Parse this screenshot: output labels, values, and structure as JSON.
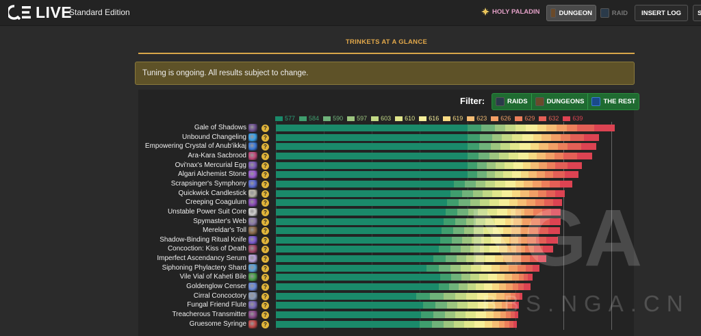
{
  "header": {
    "logo_text": "LIVE",
    "edition": "Standard Edition",
    "spec": "HOLY PALADIN",
    "mode_dungeon": "DUNGEON",
    "mode_raid": "RAID",
    "insert_log": "INSERT LOG",
    "extra_button": "S"
  },
  "section": {
    "title": "TRINKETS AT A GLANCE",
    "notice": "Tuning is ongoing. All results subject to change."
  },
  "filter": {
    "label": "Filter:",
    "options": [
      "RAIDS",
      "DUNGEONS",
      "THE REST"
    ]
  },
  "colors": {
    "accent": "#e2a84a",
    "filter_green": "#1f6b31",
    "help_yellow": "#e0b43a"
  },
  "chart_data": {
    "type": "bar",
    "orientation": "horizontal",
    "stacked": true,
    "title": "",
    "legend_placement": "top",
    "levels": [
      "577",
      "584",
      "590",
      "597",
      "603",
      "610",
      "616",
      "619",
      "623",
      "626",
      "629",
      "632",
      "639"
    ],
    "level_colors": [
      "#1a8a6a",
      "#3f9e6e",
      "#6fb27a",
      "#9cc57f",
      "#c1d885",
      "#e0e68c",
      "#f6ef9a",
      "#f7d983",
      "#f5bd74",
      "#f29f66",
      "#ec7f5b",
      "#e35f56",
      "#dc4352"
    ],
    "level_text_colors": [
      "#2aa07a",
      "#3f9e6e",
      "#6fb27a",
      "#9cc57f",
      "#c1d885",
      "#e0e68c",
      "#f6ef9a",
      "#f7d983",
      "#f5bd74",
      "#f29f66",
      "#ec7f5b",
      "#e35f56",
      "#dc4352"
    ],
    "categories": [
      "Gale of Shadows",
      "Unbound Changeling",
      "Empowering Crystal of Anub'ikkaj",
      "Ara-Kara Sacbrood",
      "Ovi'nax's Mercurial Egg",
      "Algari Alchemist Stone",
      "Scrapsinger's Symphony",
      "Quickwick Candlestick",
      "Creeping Coagulum",
      "Unstable Power Suit Core",
      "Spymaster's Web",
      "Mereldar's Toll",
      "Shadow-Binding Ritual Knife",
      "Concoction: Kiss of Death",
      "Imperfect Ascendancy Serum",
      "Siphoning Phylactery Shard",
      "Vile Vial of Kaheti Bile",
      "Goldenglow Censer",
      "Cirral Concoctory",
      "Fungal Friend Flute",
      "Treacherous Transmitter",
      "Gruesome Syringe"
    ],
    "totals_by_level": [
      [
        280,
        300,
        320,
        335,
        350,
        365,
        382,
        395,
        410,
        425,
        440,
        465,
        495
      ],
      [
        280,
        298,
        316,
        330,
        345,
        360,
        376,
        388,
        402,
        416,
        430,
        450,
        472
      ],
      [
        280,
        297,
        314,
        328,
        342,
        356,
        372,
        384,
        398,
        412,
        426,
        446,
        468
      ],
      [
        280,
        296,
        312,
        326,
        340,
        354,
        369,
        381,
        394,
        407,
        420,
        440,
        462
      ],
      [
        280,
        294,
        308,
        321,
        334,
        347,
        361,
        372,
        384,
        396,
        408,
        426,
        447
      ],
      [
        280,
        294,
        308,
        320,
        332,
        345,
        358,
        369,
        381,
        393,
        405,
        422,
        442
      ],
      [
        260,
        276,
        292,
        306,
        320,
        335,
        350,
        362,
        375,
        388,
        400,
        415,
        433
      ],
      [
        255,
        272,
        288,
        302,
        316,
        330,
        345,
        357,
        370,
        383,
        395,
        408,
        422
      ],
      [
        250,
        267,
        284,
        298,
        312,
        326,
        341,
        353,
        366,
        379,
        392,
        405,
        418
      ],
      [
        248,
        265,
        281,
        295,
        309,
        323,
        338,
        350,
        363,
        376,
        389,
        402,
        416
      ],
      [
        245,
        262,
        278,
        292,
        306,
        320,
        335,
        347,
        360,
        373,
        386,
        400,
        416
      ],
      [
        242,
        259,
        275,
        289,
        303,
        317,
        332,
        344,
        357,
        370,
        383,
        398,
        415
      ],
      [
        240,
        257,
        272,
        286,
        300,
        314,
        329,
        341,
        354,
        367,
        380,
        395,
        412
      ],
      [
        238,
        255,
        270,
        284,
        298,
        312,
        326,
        338,
        351,
        364,
        377,
        390,
        405
      ],
      [
        230,
        248,
        264,
        278,
        292,
        306,
        320,
        332,
        345,
        358,
        371,
        383,
        395
      ],
      [
        220,
        238,
        255,
        270,
        285,
        300,
        315,
        327,
        340,
        353,
        365,
        375,
        385
      ],
      [
        240,
        256,
        271,
        284,
        297,
        310,
        323,
        334,
        345,
        355,
        362,
        368,
        375
      ],
      [
        238,
        253,
        267,
        280,
        292,
        304,
        316,
        326,
        336,
        346,
        354,
        362,
        372
      ],
      [
        205,
        225,
        245,
        262,
        278,
        294,
        310,
        322,
        334,
        343,
        350,
        356,
        360
      ],
      [
        215,
        233,
        250,
        265,
        280,
        295,
        310,
        320,
        330,
        338,
        345,
        350,
        355
      ],
      [
        212,
        230,
        247,
        262,
        277,
        292,
        307,
        318,
        328,
        336,
        343,
        349,
        354
      ],
      [
        210,
        228,
        245,
        260,
        275,
        290,
        305,
        316,
        326,
        334,
        341,
        347,
        352
      ]
    ],
    "icons": [
      {
        "name": "shadow-trinket-icon",
        "color": "#6b4f8f"
      },
      {
        "name": "changeling-icon",
        "color": "#3aa0e8"
      },
      {
        "name": "crystal-icon",
        "color": "#3c7ad8"
      },
      {
        "name": "sacbrood-icon",
        "color": "#c04a7a"
      },
      {
        "name": "egg-icon",
        "color": "#7d5ab8"
      },
      {
        "name": "alchemist-stone-icon",
        "color": "#9a5bd0"
      },
      {
        "name": "symphony-icon",
        "color": "#5a6ad0"
      },
      {
        "name": "candlestick-icon",
        "color": "#b8b4a8"
      },
      {
        "name": "coagulum-icon",
        "color": "#8a4ab8"
      },
      {
        "name": "power-core-icon",
        "color": "#d0d0d0"
      },
      {
        "name": "web-icon",
        "color": "#8a7aa8"
      },
      {
        "name": "toll-icon",
        "color": "#8a6a4a"
      },
      {
        "name": "knife-icon",
        "color": "#7a5ad0"
      },
      {
        "name": "concoction-icon",
        "color": "#a04a6a"
      },
      {
        "name": "serum-icon",
        "color": "#b8a0d8"
      },
      {
        "name": "phylactery-icon",
        "color": "#5aa0d8"
      },
      {
        "name": "vial-icon",
        "color": "#4aa04a"
      },
      {
        "name": "censer-icon",
        "color": "#6a8ad8"
      },
      {
        "name": "cirral-icon",
        "color": "#8a9ab8"
      },
      {
        "name": "flute-icon",
        "color": "#7a6ab8"
      },
      {
        "name": "transmitter-icon",
        "color": "#8a4a8a"
      },
      {
        "name": "syringe-icon",
        "color": "#c04a4a"
      }
    ]
  }
}
